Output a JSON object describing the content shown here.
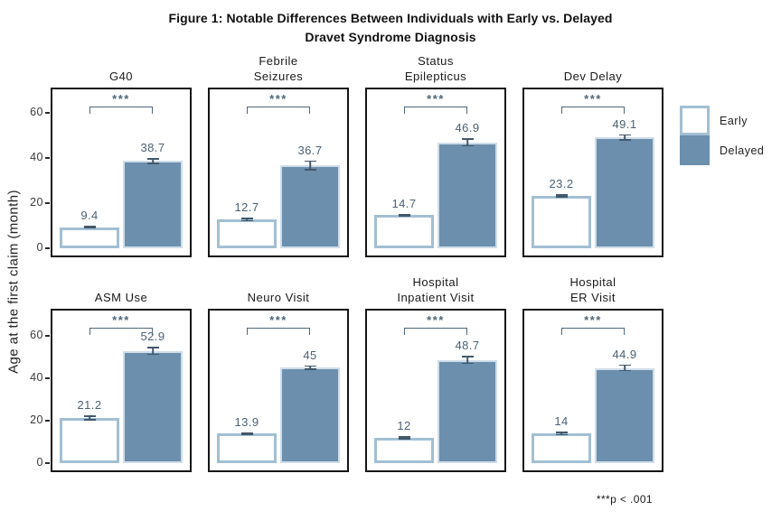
{
  "figure": {
    "title": "Figure 1: Notable Differences Between Individuals with Early vs. Delayed\nDravet Syndrome Diagnosis",
    "ylabel": "Age at the first claim (month)",
    "footnote": "***p < .001"
  },
  "legend": {
    "items": [
      {
        "label": "Early",
        "variant": "early",
        "fill": "#ffffff",
        "border": "#a2bfd4"
      },
      {
        "label": "Delayed",
        "variant": "delayed",
        "fill": "#6b8fad",
        "border": "#cfdde9"
      }
    ]
  },
  "colors": {
    "delayed_fill": "#6b8fad",
    "early_border": "#a2bfd4",
    "delayed_border": "#cfdde9",
    "error_bar": "#42586c",
    "annotation": "#4f6679",
    "panel_border": "#151515",
    "tick_text": "#3c3c3c"
  },
  "chart_data": {
    "type": "bar",
    "categories": [
      "Early",
      "Delayed"
    ],
    "yticks": [
      0,
      20,
      40,
      60
    ],
    "ylim": [
      0,
      72
    ],
    "ylabel": "Age at the first claim (month)",
    "legend_position": "right",
    "grid": false,
    "significance_marker": "***",
    "panels": [
      {
        "title": "G40",
        "early": 9.4,
        "delayed": 38.7,
        "early_err": 0.5,
        "delayed_err": 1.3
      },
      {
        "title": "Febrile\nSeizures",
        "early": 12.7,
        "delayed": 36.7,
        "early_err": 0.8,
        "delayed_err": 2.3
      },
      {
        "title": "Status\nEpilepticus",
        "early": 14.7,
        "delayed": 46.9,
        "early_err": 0.6,
        "delayed_err": 1.8
      },
      {
        "title": "Dev Delay",
        "early": 23.2,
        "delayed": 49.1,
        "early_err": 0.7,
        "delayed_err": 1.4
      },
      {
        "title": "ASM Use",
        "early": 21.2,
        "delayed": 52.9,
        "early_err": 1.2,
        "delayed_err": 2.0
      },
      {
        "title": "Neuro Visit",
        "early": 13.9,
        "delayed": 45,
        "early_err": 0.6,
        "delayed_err": 1.1
      },
      {
        "title": "Hospital\nInpatient Visit",
        "early": 12,
        "delayed": 48.7,
        "early_err": 0.8,
        "delayed_err": 2.0
      },
      {
        "title": "Hospital\nER Visit",
        "early": 14,
        "delayed": 44.9,
        "early_err": 0.9,
        "delayed_err": 1.6
      }
    ]
  }
}
